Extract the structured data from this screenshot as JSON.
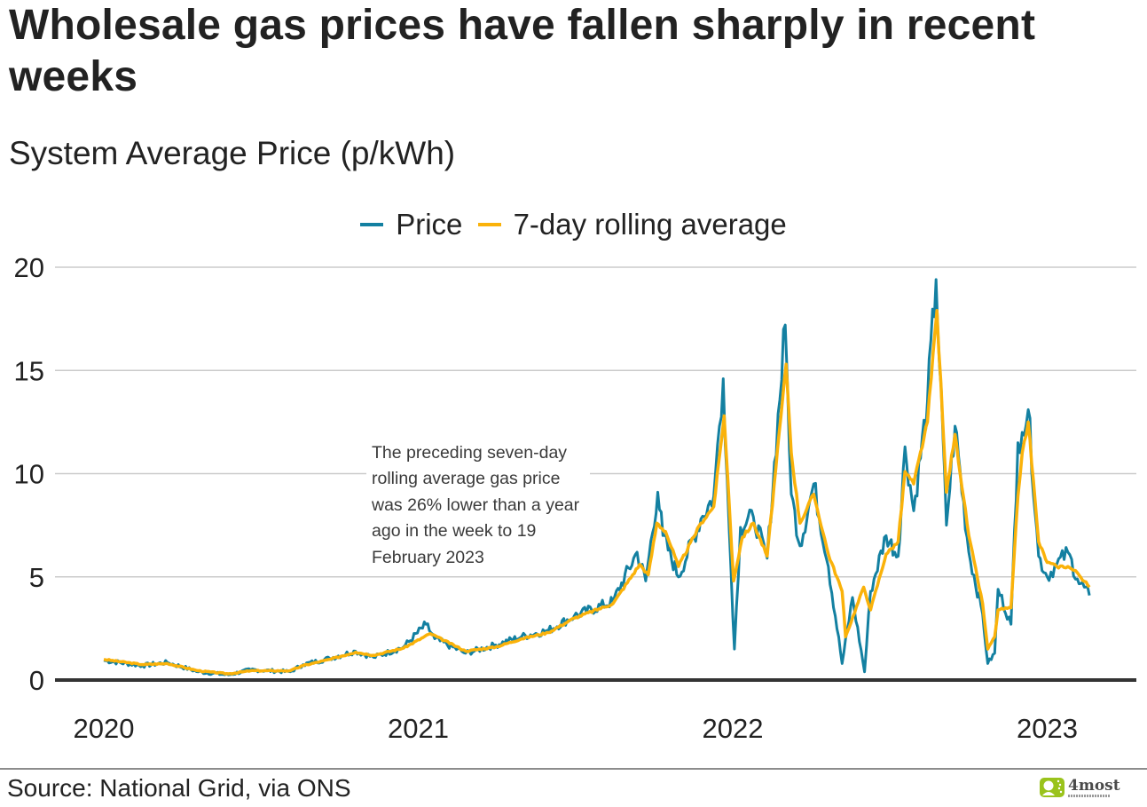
{
  "header": {
    "title": "Wholesale gas prices have fallen sharply in recent weeks",
    "subtitle": "System Average Price (p/kWh)"
  },
  "legend": {
    "items": [
      {
        "label": "Price",
        "color": "#1380a1"
      },
      {
        "label": "7-day rolling average",
        "color": "#fab20a"
      }
    ]
  },
  "annotation": {
    "text": "The preceding seven-day rolling average gas price was 26% lower than a year ago in the week to 19 February 2023"
  },
  "footer": {
    "source": "Source: National Grid, via ONS",
    "logo_text": "4most",
    "logo_color": "#9ac31c"
  },
  "chart_data": {
    "type": "line",
    "title": "Wholesale gas prices have fallen sharply in recent weeks",
    "subtitle": "System Average Price (p/kWh)",
    "xlabel": "",
    "ylabel": "System Average Price (p/kWh)",
    "ylim": [
      0,
      20
    ],
    "xlim": [
      "2020-01-01",
      "2023-02-19"
    ],
    "yticks": [
      "0",
      "5",
      "10",
      "15",
      "20"
    ],
    "xticks": [
      {
        "label": "2020",
        "date": "2020-01-01"
      },
      {
        "label": "2021",
        "date": "2021-01-01"
      },
      {
        "label": "2022",
        "date": "2022-01-01"
      },
      {
        "label": "2023",
        "date": "2023-01-01"
      }
    ],
    "grid": "horizontal",
    "legend_position": "top-center",
    "annotation": "The preceding seven-day rolling average gas price was 26% lower than a year ago in the week to 19 February 2023",
    "series": [
      {
        "name": "7-day rolling average",
        "color": "#fab20a",
        "points": [
          [
            "2020-01-01",
            1.0
          ],
          [
            "2020-02-15",
            0.75
          ],
          [
            "2020-03-15",
            0.8
          ],
          [
            "2020-04-20",
            0.45
          ],
          [
            "2020-05-25",
            0.3
          ],
          [
            "2020-06-20",
            0.45
          ],
          [
            "2020-08-05",
            0.45
          ],
          [
            "2020-08-20",
            0.7
          ],
          [
            "2020-09-20",
            1.0
          ],
          [
            "2020-10-20",
            1.35
          ],
          [
            "2020-11-10",
            1.2
          ],
          [
            "2020-12-15",
            1.55
          ],
          [
            "2021-01-15",
            2.25
          ],
          [
            "2021-02-25",
            1.4
          ],
          [
            "2021-04-01",
            1.6
          ],
          [
            "2021-05-01",
            2.0
          ],
          [
            "2021-06-01",
            2.3
          ],
          [
            "2021-07-01",
            3.0
          ],
          [
            "2021-08-15",
            3.7
          ],
          [
            "2021-09-15",
            5.6
          ],
          [
            "2021-09-25",
            5.1
          ],
          [
            "2021-10-05",
            7.6
          ],
          [
            "2021-10-15",
            7.2
          ],
          [
            "2021-10-30",
            5.5
          ],
          [
            "2021-11-25",
            7.6
          ],
          [
            "2021-12-10",
            8.4
          ],
          [
            "2021-12-22",
            12.8
          ],
          [
            "2022-01-02",
            4.8
          ],
          [
            "2022-01-12",
            6.9
          ],
          [
            "2022-01-25",
            7.6
          ],
          [
            "2022-02-10",
            6.0
          ],
          [
            "2022-03-04",
            15.3
          ],
          [
            "2022-03-10",
            11.0
          ],
          [
            "2022-03-20",
            7.6
          ],
          [
            "2022-04-05",
            9.0
          ],
          [
            "2022-04-22",
            6.1
          ],
          [
            "2022-05-08",
            4.3
          ],
          [
            "2022-05-12",
            2.1
          ],
          [
            "2022-06-02",
            4.5
          ],
          [
            "2022-06-10",
            3.4
          ],
          [
            "2022-06-28",
            6.1
          ],
          [
            "2022-07-12",
            6.7
          ],
          [
            "2022-07-20",
            10.1
          ],
          [
            "2022-07-30",
            9.5
          ],
          [
            "2022-08-15",
            12.5
          ],
          [
            "2022-08-26",
            17.9
          ],
          [
            "2022-09-06",
            9.1
          ],
          [
            "2022-09-16",
            11.9
          ],
          [
            "2022-10-02",
            7.0
          ],
          [
            "2022-10-18",
            3.7
          ],
          [
            "2022-10-24",
            1.5
          ],
          [
            "2022-11-01",
            2.1
          ],
          [
            "2022-11-05",
            3.4
          ],
          [
            "2022-11-20",
            3.5
          ],
          [
            "2022-11-28",
            8.9
          ],
          [
            "2022-12-03",
            11.0
          ],
          [
            "2022-12-10",
            12.5
          ],
          [
            "2022-12-22",
            6.7
          ],
          [
            "2023-01-01",
            5.7
          ],
          [
            "2023-01-12",
            5.5
          ],
          [
            "2023-01-25",
            5.5
          ],
          [
            "2023-02-05",
            5.2
          ],
          [
            "2023-02-19",
            4.5
          ]
        ]
      },
      {
        "name": "Price",
        "color": "#1380a1",
        "points": [
          [
            "2020-01-01",
            0.95
          ],
          [
            "2020-02-15",
            0.7
          ],
          [
            "2020-03-15",
            0.85
          ],
          [
            "2020-04-20",
            0.4
          ],
          [
            "2020-05-25",
            0.25
          ],
          [
            "2020-06-20",
            0.5
          ],
          [
            "2020-08-05",
            0.4
          ],
          [
            "2020-08-20",
            0.75
          ],
          [
            "2020-09-20",
            1.05
          ],
          [
            "2020-10-20",
            1.4
          ],
          [
            "2020-11-10",
            1.1
          ],
          [
            "2020-12-15",
            1.6
          ],
          [
            "2021-01-10",
            2.7
          ],
          [
            "2021-01-20",
            2.0
          ],
          [
            "2021-02-25",
            1.3
          ],
          [
            "2021-04-01",
            1.7
          ],
          [
            "2021-05-01",
            2.1
          ],
          [
            "2021-06-01",
            2.4
          ],
          [
            "2021-07-01",
            3.1
          ],
          [
            "2021-08-15",
            3.8
          ],
          [
            "2021-09-12",
            6.2
          ],
          [
            "2021-09-22",
            4.8
          ],
          [
            "2021-10-06",
            9.1
          ],
          [
            "2021-10-12",
            7.0
          ],
          [
            "2021-10-30",
            5.0
          ],
          [
            "2021-11-25",
            7.8
          ],
          [
            "2021-12-10",
            8.9
          ],
          [
            "2021-12-21",
            14.6
          ],
          [
            "2021-12-28",
            7.2
          ],
          [
            "2022-01-03",
            1.5
          ],
          [
            "2022-01-10",
            7.4
          ],
          [
            "2022-01-25",
            7.9
          ],
          [
            "2022-02-10",
            5.9
          ],
          [
            "2022-03-03",
            17.2
          ],
          [
            "2022-03-10",
            9.0
          ],
          [
            "2022-03-20",
            6.5
          ],
          [
            "2022-04-05",
            9.5
          ],
          [
            "2022-04-22",
            5.5
          ],
          [
            "2022-05-08",
            0.8
          ],
          [
            "2022-05-20",
            4.0
          ],
          [
            "2022-06-03",
            0.4
          ],
          [
            "2022-06-10",
            4.3
          ],
          [
            "2022-06-28",
            7.0
          ],
          [
            "2022-07-12",
            6.0
          ],
          [
            "2022-07-20",
            11.3
          ],
          [
            "2022-07-30",
            8.2
          ],
          [
            "2022-08-15",
            13.5
          ],
          [
            "2022-08-25",
            19.4
          ],
          [
            "2022-09-06",
            7.5
          ],
          [
            "2022-09-16",
            12.3
          ],
          [
            "2022-10-02",
            6.2
          ],
          [
            "2022-10-18",
            3.2
          ],
          [
            "2022-10-24",
            0.8
          ],
          [
            "2022-11-01",
            1.3
          ],
          [
            "2022-11-05",
            4.4
          ],
          [
            "2022-11-20",
            2.7
          ],
          [
            "2022-11-28",
            11.5
          ],
          [
            "2022-12-03",
            12.0
          ],
          [
            "2022-12-10",
            13.1
          ],
          [
            "2022-12-22",
            6.0
          ],
          [
            "2023-01-01",
            5.0
          ],
          [
            "2023-01-12",
            5.6
          ],
          [
            "2023-01-25",
            6.2
          ],
          [
            "2023-02-05",
            4.9
          ],
          [
            "2023-02-19",
            4.1
          ]
        ]
      }
    ]
  }
}
